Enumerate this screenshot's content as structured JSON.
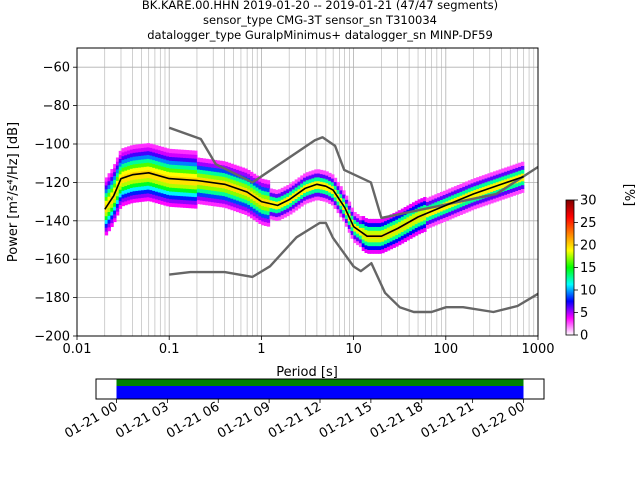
{
  "title_lines": [
    "BK.KARE.00.HHN   2019-01-20 -- 2019-01-21  (47/47 segments)",
    "sensor_type CMG-3T sensor_sn T310034",
    "datalogger_type GuralpMinimus+ datalogger_sn MINP-DF59"
  ],
  "chart_data": [
    {
      "type": "heatmap",
      "xlabel": "Period [s]",
      "ylabel": "Power [m²/s⁴/Hz] [dB]",
      "xscale": "log",
      "xlim": [
        0.01,
        1000
      ],
      "ylim": [
        -200,
        -50
      ],
      "x_ticks": [
        "0.01",
        "0.1",
        "1",
        "10",
        "100",
        "1000"
      ],
      "x_tick_values": [
        0.01,
        0.1,
        1,
        10,
        100,
        1000
      ],
      "y_ticks": [
        -200,
        -180,
        -160,
        -140,
        -120,
        -100,
        -80,
        -60
      ],
      "grid": true,
      "colorbar": {
        "label": "[%]",
        "range": [
          0,
          30
        ],
        "ticks": [
          0,
          5,
          10,
          15,
          20,
          25,
          30
        ],
        "colormap": [
          "#ffffff",
          "#ff00ff",
          "#0000ff",
          "#00ffff",
          "#00ff00",
          "#ffff00",
          "#ff8000",
          "#ff0000",
          "#800000"
        ]
      },
      "series": [
        {
          "role": "high noise model",
          "color": "#666666",
          "x": [
            0.1,
            0.22,
            0.32,
            0.8,
            3.8,
            4.6,
            6.3,
            7.9,
            15.4,
            20,
            354.8,
            1000
          ],
          "y": [
            -91.5,
            -97.4,
            -110.5,
            -120,
            -98,
            -96.5,
            -101,
            -113.5,
            -120,
            -138.5,
            -126,
            -112
          ]
        },
        {
          "role": "low noise model",
          "color": "#666666",
          "x": [
            0.1,
            0.17,
            0.4,
            0.8,
            1.24,
            2.4,
            4.3,
            5,
            6,
            10,
            12,
            15.6,
            21.9,
            31.6,
            45,
            70,
            101,
            154,
            328,
            600,
            1000
          ],
          "y": [
            -168,
            -166.7,
            -166.7,
            -169.2,
            -163.7,
            -148.6,
            -141.1,
            -141.1,
            -149,
            -163.8,
            -166.2,
            -162.1,
            -177.5,
            -185,
            -187.5,
            -187.5,
            -185,
            -185,
            -187.5,
            -184.4,
            -178
          ]
        },
        {
          "role": "mode",
          "color": "#000000",
          "x": [
            0.02,
            0.025,
            0.03,
            0.04,
            0.06,
            0.1,
            0.2,
            0.4,
            0.7,
            1,
            1.5,
            2,
            3,
            4,
            5,
            6,
            8,
            10,
            14,
            20,
            30,
            50,
            100,
            200,
            400,
            700
          ],
          "y": [
            -134,
            -127,
            -118,
            -116,
            -115,
            -118,
            -119,
            -121,
            -125,
            -130,
            -132,
            -129,
            -123,
            -121,
            -122,
            -124,
            -133,
            -143,
            -148,
            -148,
            -144,
            -138,
            -132,
            -126,
            -121,
            -117
          ]
        }
      ]
    },
    {
      "type": "timeline",
      "x_ticks": [
        "01-21 00",
        "01-21 03",
        "01-21 06",
        "01-21 09",
        "01-21 12",
        "01-21 15",
        "01-21 18",
        "01-21 21",
        "01-22 00"
      ],
      "coverage": {
        "start": "01-21 00",
        "end": "01-22 00"
      },
      "bar_colors": {
        "data": "#008000",
        "gaps": "#0000ff"
      }
    }
  ]
}
